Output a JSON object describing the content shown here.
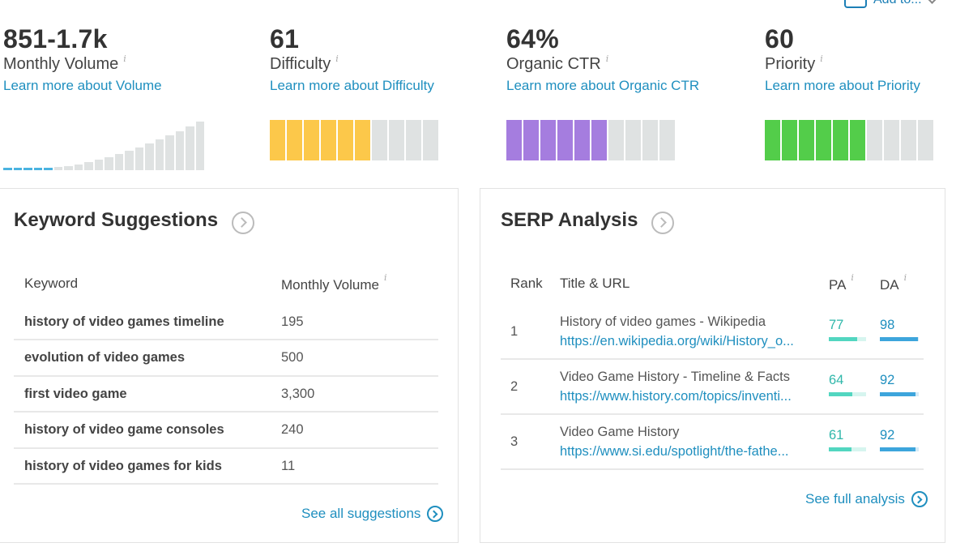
{
  "header": {
    "add_to_label": "Add to..."
  },
  "metrics": [
    {
      "value": "851-1.7k",
      "label": "Monthly Volume",
      "link": "Learn more about Volume"
    },
    {
      "value": "61",
      "label": "Difficulty",
      "link": "Learn more about Difficulty",
      "filled_segments": 6,
      "total_segments": 10,
      "color": "#fcc84a"
    },
    {
      "value": "64%",
      "label": "Organic CTR",
      "link": "Learn more about Organic CTR",
      "filled_segments": 6,
      "total_segments": 10,
      "color": "#a57ddf"
    },
    {
      "value": "60",
      "label": "Priority",
      "link": "Learn more about Priority",
      "filled_segments": 6,
      "total_segments": 10,
      "color": "#53cd4a"
    }
  ],
  "info_glyph": "i",
  "keyword_suggestions": {
    "title": "Keyword Suggestions",
    "col_keyword": "Keyword",
    "col_volume": "Monthly Volume",
    "rows": [
      {
        "keyword": "history of video games timeline",
        "volume": "195"
      },
      {
        "keyword": "evolution of video games",
        "volume": "500"
      },
      {
        "keyword": "first video game",
        "volume": "3,300"
      },
      {
        "keyword": "history of video game consoles",
        "volume": "240"
      },
      {
        "keyword": "history of video games for kids",
        "volume": "11"
      }
    ],
    "see_all": "See all suggestions"
  },
  "serp_analysis": {
    "title": "SERP Analysis",
    "col_rank": "Rank",
    "col_title": "Title & URL",
    "col_pa": "PA",
    "col_da": "DA",
    "rows": [
      {
        "rank": "1",
        "title": "History of video games - Wikipedia",
        "url": "https://en.wikipedia.org/wiki/History_o...",
        "pa": "77",
        "da": "98"
      },
      {
        "rank": "2",
        "title": "Video Game History - Timeline & Facts",
        "url": "https://www.history.com/topics/inventi...",
        "pa": "64",
        "da": "92"
      },
      {
        "rank": "3",
        "title": "Video Game History",
        "url": "https://www.si.edu/spotlight/the-fathe...",
        "pa": "61",
        "da": "92"
      }
    ],
    "see_full": "See full analysis"
  },
  "colors": {
    "accent_link": "#1f8fbf",
    "pa_bar": "#52d6c0",
    "da_bar": "#3da5dc"
  }
}
